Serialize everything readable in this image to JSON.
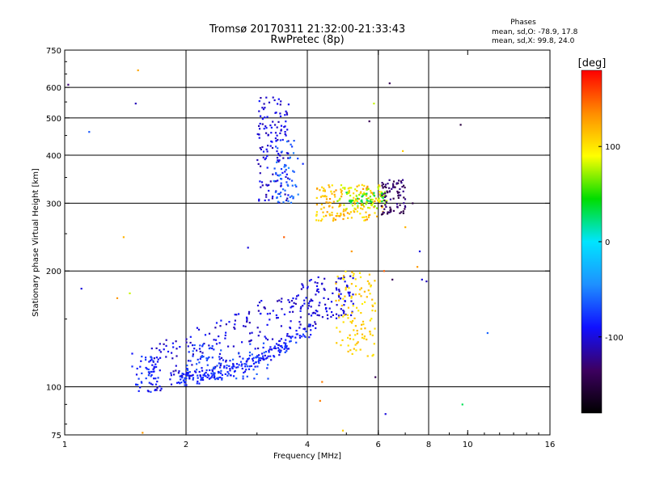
{
  "chart_data": {
    "type": "scatter",
    "title": "Tromsø 20170311 21:32:00-21:33:43",
    "subtitle": "RwPretec (8p)",
    "annotation": {
      "heading": "Phases",
      "line1": "mean, sd,O: -78.9, 17.8",
      "line2": "mean, sd,X:  99.8, 24.0"
    },
    "xlabel": "Frequency [MHz]",
    "ylabel": "Stationary phase Virtual Height [km]",
    "x_scale": "log2",
    "y_scale": "log",
    "xlim": [
      1,
      16
    ],
    "ylim": [
      75,
      750
    ],
    "x_ticks": [
      1,
      2,
      4,
      6,
      8,
      10,
      16
    ],
    "x_tick_labels": [
      "1",
      "2",
      "4",
      "6",
      "8",
      "10",
      "16"
    ],
    "x_grid": [
      2,
      4,
      6,
      8
    ],
    "y_ticks": [
      75,
      100,
      200,
      300,
      400,
      500,
      600,
      750
    ],
    "y_tick_labels": [
      "75",
      "100",
      "200",
      "300",
      "400",
      "500",
      "600",
      "750"
    ],
    "y_grid": [
      100,
      200,
      300,
      400,
      500,
      600
    ],
    "grid": true,
    "colorbar": {
      "label": "[deg]",
      "range": [
        -180,
        180
      ],
      "ticks": [
        100,
        0,
        -100
      ],
      "tick_labels": [
        "100",
        "0",
        "-100"
      ],
      "stops": [
        "#000000",
        "#3d0060",
        "#1010ff",
        "#1e90ff",
        "#00e5ff",
        "#00dd00",
        "#ffff00",
        "#ff8c00",
        "#ff0000"
      ]
    },
    "clusters": [
      {
        "name": "E-low-trace",
        "n": 210,
        "f": [
          1.9,
          4.1
        ],
        "h": [
          104,
          140
        ],
        "phase": [
          -100,
          -70
        ],
        "seed": 11
      },
      {
        "name": "E-upper-blue",
        "n": 220,
        "f": [
          1.6,
          4.2
        ],
        "h": [
          110,
          175
        ],
        "phase": [
          -115,
          -85
        ],
        "seed": 23
      },
      {
        "name": "E-cyan",
        "n": 70,
        "f": [
          1.95,
          3.2
        ],
        "h": [
          104,
          130
        ],
        "phase": [
          -80,
          -60
        ],
        "seed": 37
      },
      {
        "name": "lowfreq-clump",
        "n": 45,
        "f": [
          1.5,
          1.72
        ],
        "h": [
          97,
          120
        ],
        "phase": [
          -95,
          -70
        ],
        "seed": 41
      },
      {
        "name": "Es-blue-tail",
        "n": 90,
        "f": [
          4.0,
          5.2
        ],
        "h": [
          150,
          195
        ],
        "phase": [
          -110,
          -90
        ],
        "seed": 53
      },
      {
        "name": "Es-orange",
        "n": 110,
        "f": [
          4.7,
          5.9
        ],
        "h": [
          118,
          200
        ],
        "phase": [
          95,
          120
        ],
        "seed": 61
      },
      {
        "name": "F-column-blue",
        "n": 140,
        "f": [
          3.0,
          3.6
        ],
        "h": [
          300,
          570
        ],
        "phase": [
          -115,
          -85
        ],
        "seed": 71
      },
      {
        "name": "F-column-cyan",
        "n": 55,
        "f": [
          3.3,
          3.8
        ],
        "h": [
          300,
          440
        ],
        "phase": [
          -75,
          -45
        ],
        "seed": 79
      },
      {
        "name": "F-orange",
        "n": 170,
        "f": [
          4.2,
          6.2
        ],
        "h": [
          270,
          335
        ],
        "phase": [
          95,
          135
        ],
        "seed": 83
      },
      {
        "name": "F-yellow",
        "n": 60,
        "f": [
          4.7,
          6.3
        ],
        "h": [
          290,
          335
        ],
        "phase": [
          65,
          85
        ],
        "seed": 89
      },
      {
        "name": "F-purple",
        "n": 80,
        "f": [
          6.1,
          7.0
        ],
        "h": [
          280,
          345
        ],
        "phase": [
          -150,
          -120
        ],
        "seed": 97
      },
      {
        "name": "F-green",
        "n": 25,
        "f": [
          5.0,
          6.3
        ],
        "h": [
          300,
          320
        ],
        "phase": [
          20,
          40
        ],
        "seed": 101
      }
    ],
    "points": [
      {
        "f": 1.02,
        "h": 610,
        "phase": -130
      },
      {
        "f": 1.15,
        "h": 460,
        "phase": -65
      },
      {
        "f": 1.1,
        "h": 180,
        "phase": -100
      },
      {
        "f": 1.35,
        "h": 170,
        "phase": 130
      },
      {
        "f": 1.45,
        "h": 175,
        "phase": 80
      },
      {
        "f": 1.4,
        "h": 245,
        "phase": 120
      },
      {
        "f": 1.52,
        "h": 665,
        "phase": 125
      },
      {
        "f": 1.5,
        "h": 545,
        "phase": -110
      },
      {
        "f": 1.47,
        "h": 122,
        "phase": -90
      },
      {
        "f": 1.47,
        "h": 113,
        "phase": -80
      },
      {
        "f": 1.56,
        "h": 76,
        "phase": 130
      },
      {
        "f": 2.85,
        "h": 230,
        "phase": -100
      },
      {
        "f": 3.5,
        "h": 245,
        "phase": 150
      },
      {
        "f": 3.9,
        "h": 380,
        "phase": -80
      },
      {
        "f": 5.85,
        "h": 545,
        "phase": 80
      },
      {
        "f": 5.7,
        "h": 490,
        "phase": -140
      },
      {
        "f": 6.4,
        "h": 615,
        "phase": -140
      },
      {
        "f": 6.9,
        "h": 410,
        "phase": 110
      },
      {
        "f": 9.6,
        "h": 480,
        "phase": -150
      },
      {
        "f": 7.7,
        "h": 190,
        "phase": -100
      },
      {
        "f": 7.9,
        "h": 188,
        "phase": -110
      },
      {
        "f": 7.6,
        "h": 225,
        "phase": -100
      },
      {
        "f": 7.3,
        "h": 300,
        "phase": -150
      },
      {
        "f": 6.6,
        "h": 330,
        "phase": -140
      },
      {
        "f": 7.5,
        "h": 205,
        "phase": 130
      },
      {
        "f": 5.15,
        "h": 225,
        "phase": 130
      },
      {
        "f": 4.35,
        "h": 103,
        "phase": 140
      },
      {
        "f": 4.3,
        "h": 92,
        "phase": 140
      },
      {
        "f": 4.9,
        "h": 77,
        "phase": 110
      },
      {
        "f": 6.25,
        "h": 85,
        "phase": -100
      },
      {
        "f": 5.9,
        "h": 106,
        "phase": -140
      },
      {
        "f": 9.7,
        "h": 90,
        "phase": 30
      },
      {
        "f": 11.2,
        "h": 138,
        "phase": -60
      },
      {
        "f": 6.2,
        "h": 200,
        "phase": 150
      },
      {
        "f": 6.5,
        "h": 190,
        "phase": -140
      },
      {
        "f": 7.0,
        "h": 260,
        "phase": 120
      }
    ]
  }
}
